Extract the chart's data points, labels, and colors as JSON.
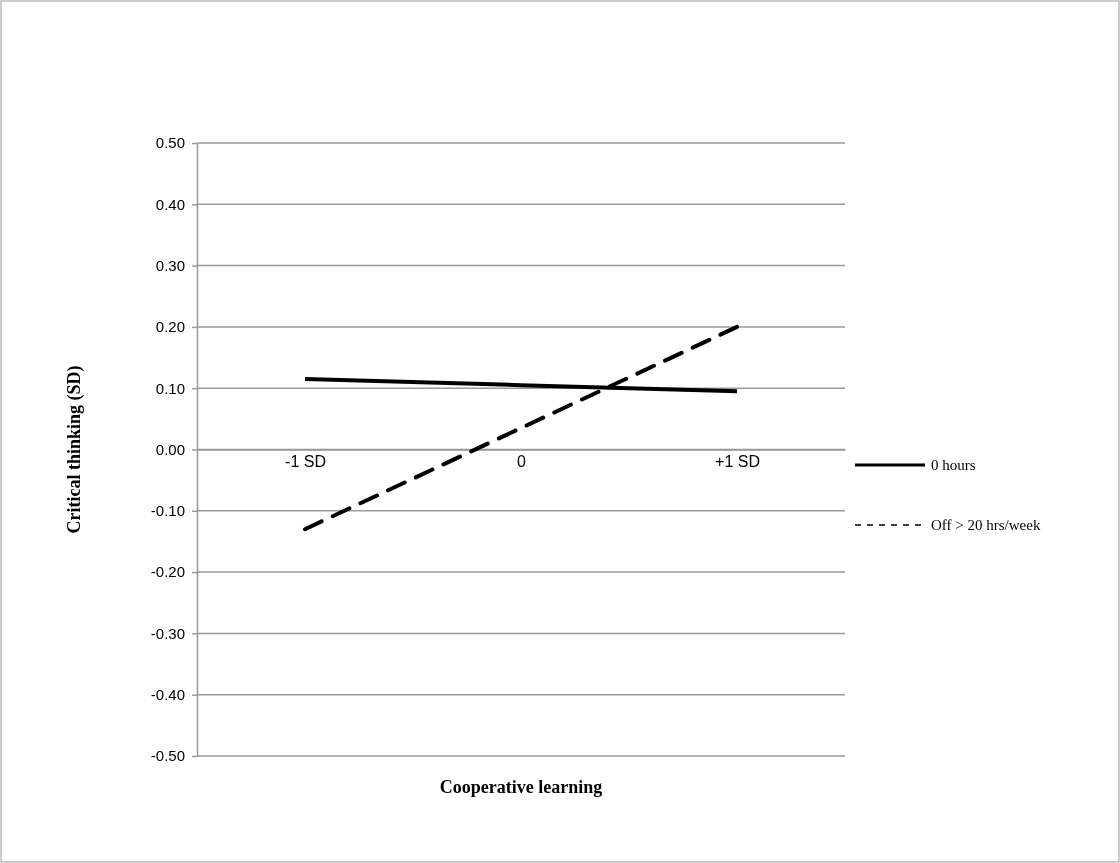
{
  "chart_data": {
    "type": "line",
    "xlabel": "Cooperative learning",
    "ylabel": "Critical thinking  (SD)",
    "categories": [
      "-1 SD",
      "0",
      "+1 SD"
    ],
    "series": [
      {
        "name": "0 hours",
        "color": "#000000",
        "values": [
          0.115,
          0.105,
          0.095
        ],
        "line_style": "solid"
      },
      {
        "name": "Off > 20 hrs/week",
        "color": "#000000",
        "values": [
          -0.13,
          0.035,
          0.2
        ],
        "line_style": "dashed"
      }
    ],
    "ylim": [
      -0.5,
      0.5
    ],
    "yticks": [
      {
        "value": -0.5,
        "label": "-0.50"
      },
      {
        "value": -0.4,
        "label": "-0.40"
      },
      {
        "value": -0.3,
        "label": "-0.30"
      },
      {
        "value": -0.2,
        "label": "-0.20"
      },
      {
        "value": -0.1,
        "label": "-0.10"
      },
      {
        "value": 0,
        "label": "0.00"
      },
      {
        "value": 0.1,
        "label": "0.10"
      },
      {
        "value": 0.2,
        "label": "0.20"
      },
      {
        "value": 0.3,
        "label": "0.30"
      },
      {
        "value": 0.4,
        "label": "0.40"
      },
      {
        "value": 0.5,
        "label": "0.50"
      }
    ],
    "grid": "y",
    "legend": "right",
    "marker": "none"
  }
}
